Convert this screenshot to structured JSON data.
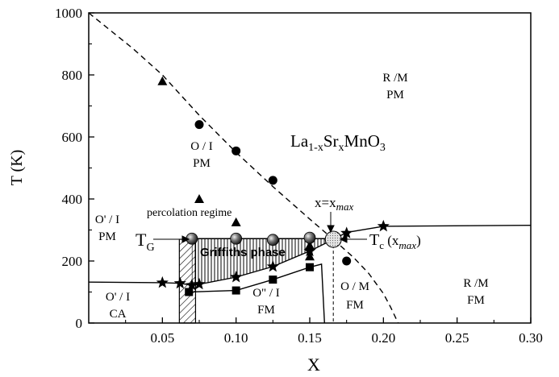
{
  "chart_data": {
    "type": "scatter",
    "title": "",
    "xlabel": "X",
    "ylabel": "T (K)",
    "xlim": [
      0.0,
      0.3
    ],
    "ylim": [
      0,
      1000
    ],
    "grid": false,
    "x_ticks": [
      {
        "value": 0.05,
        "label": "0.05"
      },
      {
        "value": 0.1,
        "label": "0.10"
      },
      {
        "value": 0.15,
        "label": "0.15"
      },
      {
        "value": 0.2,
        "label": "0.20"
      },
      {
        "value": 0.25,
        "label": "0.25"
      },
      {
        "value": 0.3,
        "label": "0.30"
      }
    ],
    "y_ticks": [
      {
        "value": 0,
        "label": "0"
      },
      {
        "value": 200,
        "label": "200"
      },
      {
        "value": 400,
        "label": "400"
      },
      {
        "value": 600,
        "label": "600"
      },
      {
        "value": 800,
        "label": "800"
      },
      {
        "value": 1000,
        "label": "1000"
      }
    ],
    "series": [
      {
        "marker": "triangle",
        "points": [
          [
            0.05,
            780
          ],
          [
            0.075,
            400
          ],
          [
            0.1,
            325
          ],
          [
            0.15,
            250
          ],
          [
            0.15,
            215
          ]
        ]
      },
      {
        "marker": "circle",
        "points": [
          [
            0.075,
            640
          ],
          [
            0.1,
            555
          ],
          [
            0.125,
            460
          ],
          [
            0.175,
            200
          ]
        ]
      },
      {
        "marker": "star",
        "points": [
          [
            0.05,
            130
          ],
          [
            0.062,
            128
          ],
          [
            0.07,
            122
          ],
          [
            0.075,
            125
          ],
          [
            0.1,
            148
          ],
          [
            0.125,
            182
          ],
          [
            0.15,
            232
          ],
          [
            0.175,
            290
          ],
          [
            0.2,
            312
          ]
        ]
      },
      {
        "marker": "square",
        "points": [
          [
            0.068,
            100
          ],
          [
            0.1,
            105
          ],
          [
            0.125,
            140
          ],
          [
            0.15,
            180
          ]
        ]
      },
      {
        "marker": "shaded-sphere",
        "points": [
          [
            0.07,
            272
          ],
          [
            0.1,
            272
          ],
          [
            0.125,
            268
          ],
          [
            0.15,
            275
          ]
        ]
      }
    ],
    "curves": [
      {
        "style": "dashed",
        "name": "PM-insulator boundary",
        "points": [
          [
            0.0,
            1000
          ],
          [
            0.03,
            885
          ],
          [
            0.05,
            800
          ],
          [
            0.075,
            670
          ],
          [
            0.1,
            550
          ],
          [
            0.125,
            440
          ],
          [
            0.15,
            335
          ],
          [
            0.166,
            270
          ]
        ]
      },
      {
        "style": "dashed",
        "name": "metal boundary",
        "points": [
          [
            0.166,
            270
          ],
          [
            0.18,
            210
          ],
          [
            0.19,
            160
          ],
          [
            0.2,
            95
          ],
          [
            0.205,
            50
          ],
          [
            0.21,
            0
          ]
        ]
      },
      {
        "style": "solid",
        "name": "Tc line",
        "points": [
          [
            0.166,
            270
          ],
          [
            0.175,
            292
          ],
          [
            0.2,
            312
          ],
          [
            0.3,
            315
          ]
        ]
      },
      {
        "style": "solid",
        "name": "Tc low",
        "points": [
          [
            0.0,
            132
          ],
          [
            0.05,
            130
          ],
          [
            0.062,
            128
          ],
          [
            0.07,
            122
          ],
          [
            0.075,
            125
          ],
          [
            0.1,
            148
          ],
          [
            0.125,
            182
          ],
          [
            0.15,
            232
          ],
          [
            0.166,
            270
          ]
        ]
      },
      {
        "style": "solid",
        "name": "structural",
        "points": [
          [
            0.068,
            100
          ],
          [
            0.1,
            105
          ],
          [
            0.125,
            140
          ],
          [
            0.15,
            180
          ],
          [
            0.158,
            190
          ],
          [
            0.16,
            0
          ]
        ]
      },
      {
        "style": "thin-dashed",
        "name": "vertical at xmax",
        "points": [
          [
            0.166,
            270
          ],
          [
            0.166,
            0
          ]
        ]
      }
    ],
    "regions": [
      {
        "name": "griffiths",
        "x_left": 0.07,
        "x_right": 0.166,
        "t_top": 272
      },
      {
        "name": "percolation",
        "x_left": 0.0615,
        "x_right": 0.0725,
        "t_top": 270,
        "t_bottom": 0
      }
    ],
    "special_point": {
      "x": 0.166,
      "t": 270
    },
    "annotations": {
      "rm_pm": [
        "R /M",
        "PM"
      ],
      "formula": {
        "base": "La",
        "sub1": "1-x",
        "mid": "Sr",
        "sub2": "x",
        "end": "MnO",
        "sub3": "3"
      },
      "oi_pm": [
        "O / I",
        "PM"
      ],
      "o1_i_pm": [
        "O' / I",
        "PM"
      ],
      "percolation": "percolation regime",
      "tg": {
        "main": "T",
        "sub": "G"
      },
      "griffiths": "Griffiths phase",
      "xmax": {
        "pre": "x=x",
        "sub": "max"
      },
      "tc": {
        "main": "T",
        "sub": "c",
        "paren_open": " (x",
        "sub2": "max",
        "paren_close": ")"
      },
      "o1_i_ca": [
        "O' / I",
        "CA"
      ],
      "o2_i_fm": [
        "O\" / I",
        "FM"
      ],
      "om_fm": [
        "O / M",
        "FM"
      ],
      "rm_fm": [
        "R /M",
        "FM"
      ]
    }
  }
}
